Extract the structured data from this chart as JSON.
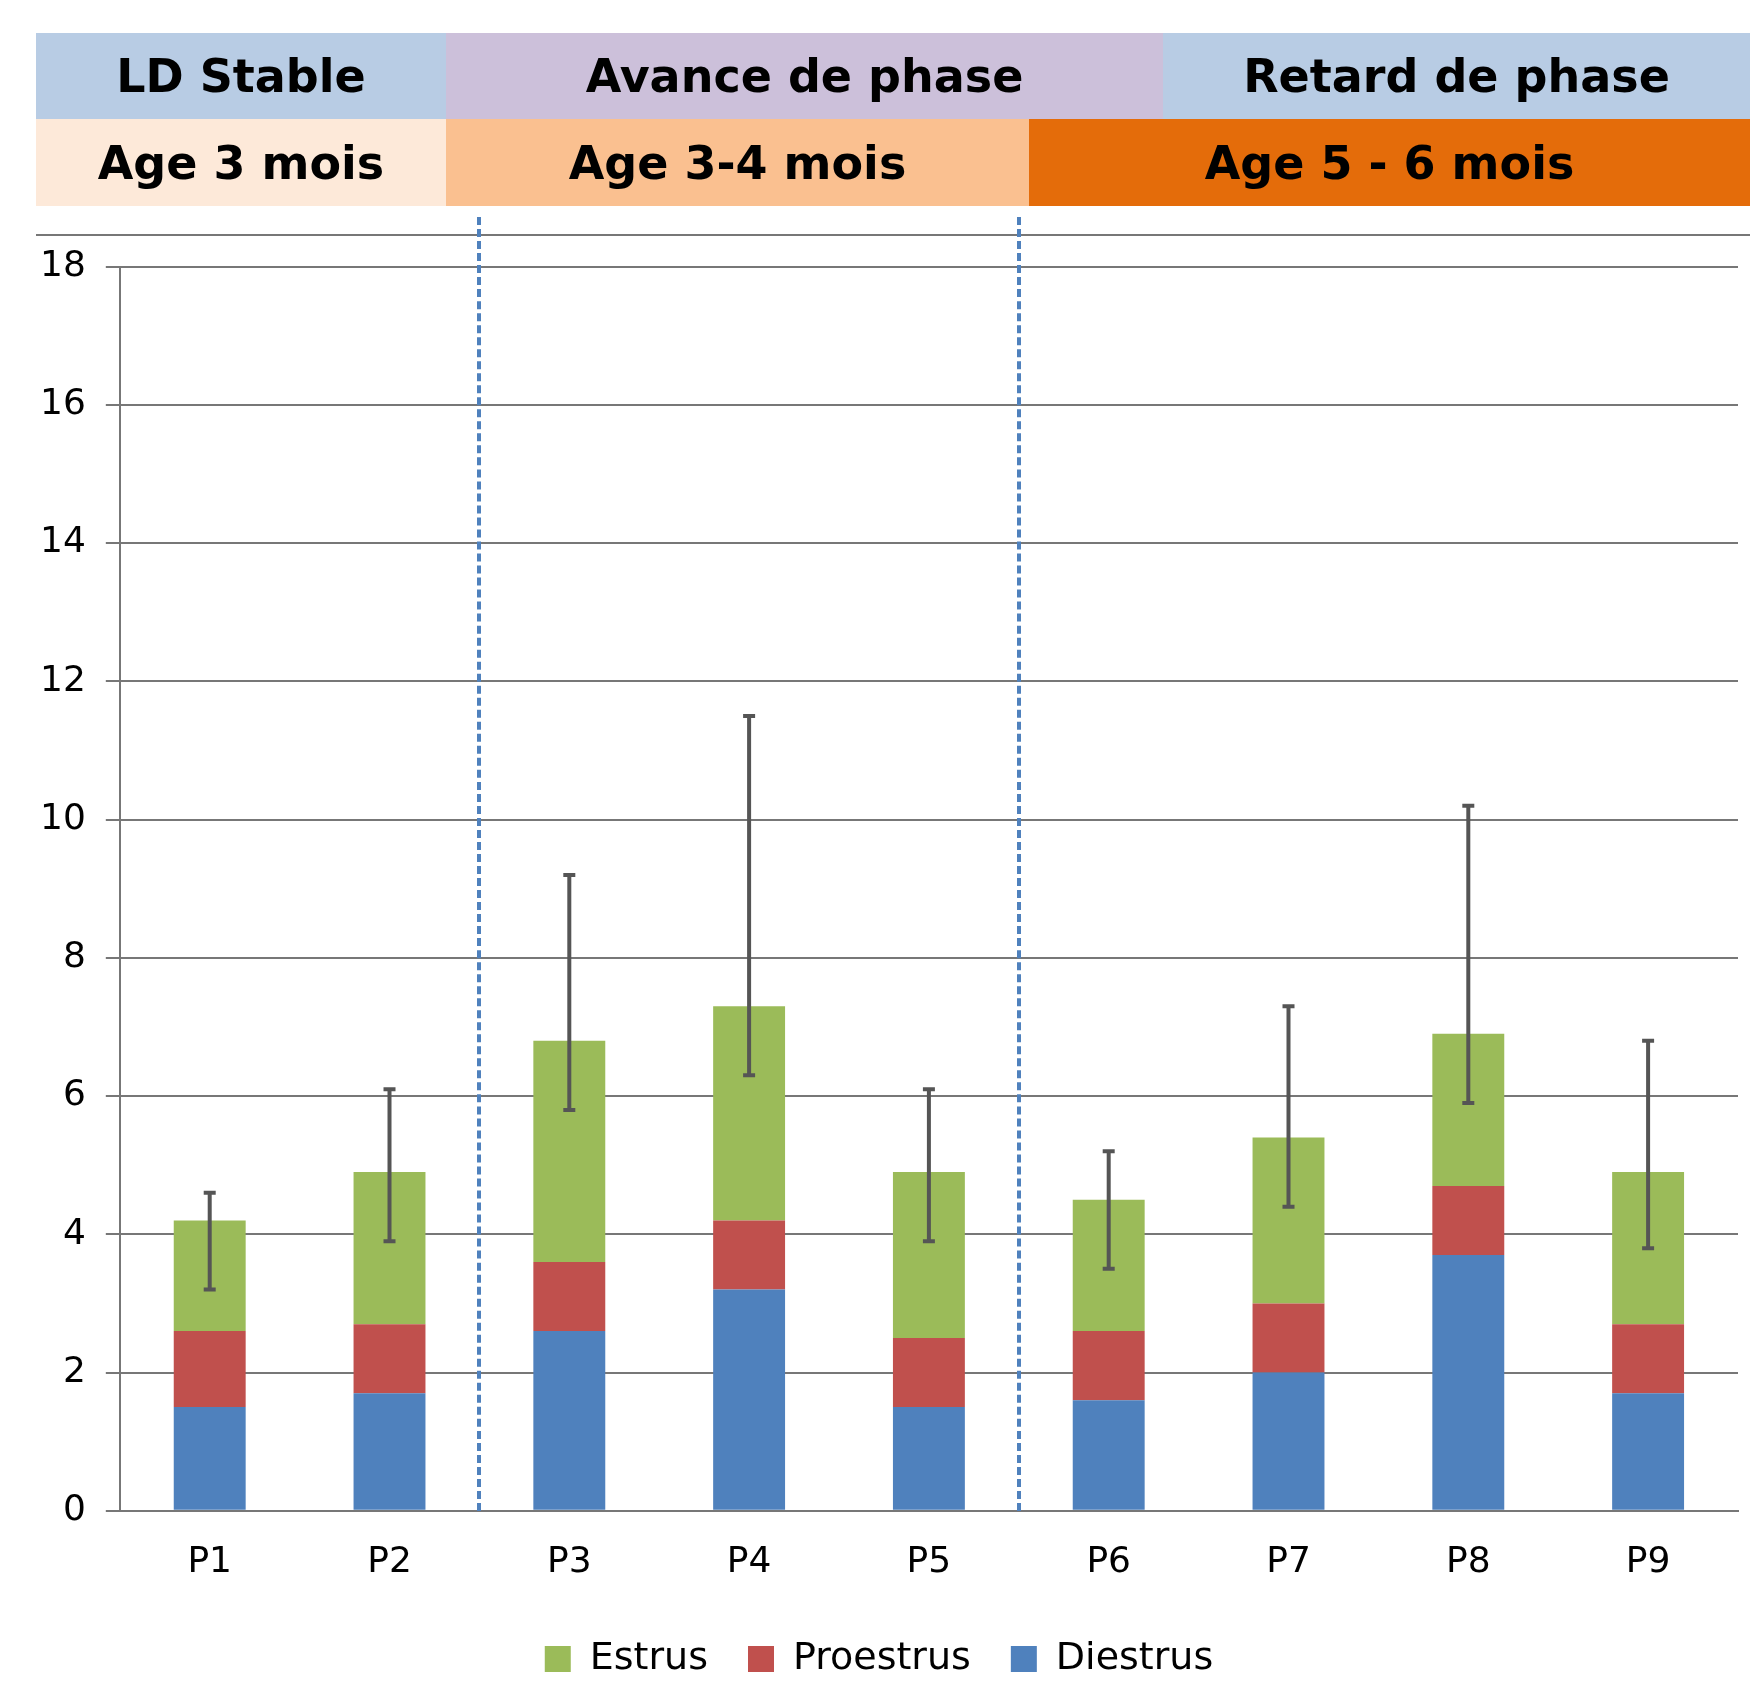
{
  "chart_data": {
    "type": "bar",
    "stacked": true,
    "categories": [
      "P1",
      "P2",
      "P3",
      "P4",
      "P5",
      "P6",
      "P7",
      "P8",
      "P9"
    ],
    "series": [
      {
        "name": "Diestrus",
        "color": "#4f81bd",
        "values": [
          1.5,
          1.7,
          2.6,
          3.2,
          1.5,
          1.6,
          2.0,
          3.7,
          1.7
        ]
      },
      {
        "name": "Proestrus",
        "color": "#c0504d",
        "values": [
          1.1,
          1.0,
          1.0,
          1.0,
          1.0,
          1.0,
          1.0,
          1.0,
          1.0
        ]
      },
      {
        "name": "Estrus",
        "color": "#9bbb59",
        "values": [
          1.6,
          2.2,
          3.2,
          3.1,
          2.4,
          1.9,
          2.4,
          2.2,
          2.2
        ],
        "errors": [
          [
            3.2,
            4.6
          ],
          [
            3.9,
            6.1
          ],
          [
            5.8,
            9.2
          ],
          [
            6.3,
            11.5
          ],
          [
            3.9,
            6.1
          ],
          [
            3.5,
            5.2
          ],
          [
            4.4,
            7.3
          ],
          [
            5.9,
            10.2
          ],
          [
            3.8,
            6.8
          ]
        ]
      }
    ],
    "ylim": [
      0,
      18
    ],
    "yticks": [
      0,
      2,
      4,
      6,
      8,
      10,
      12,
      14,
      16,
      18
    ],
    "grid": "y",
    "legend": "bottom",
    "annotations": [
      "LD Stable",
      "Avance de phase",
      "Retard de phase",
      "Age 3 mois",
      "Age 3-4 mois",
      "Age 5 - 6 mois"
    ]
  }
}
